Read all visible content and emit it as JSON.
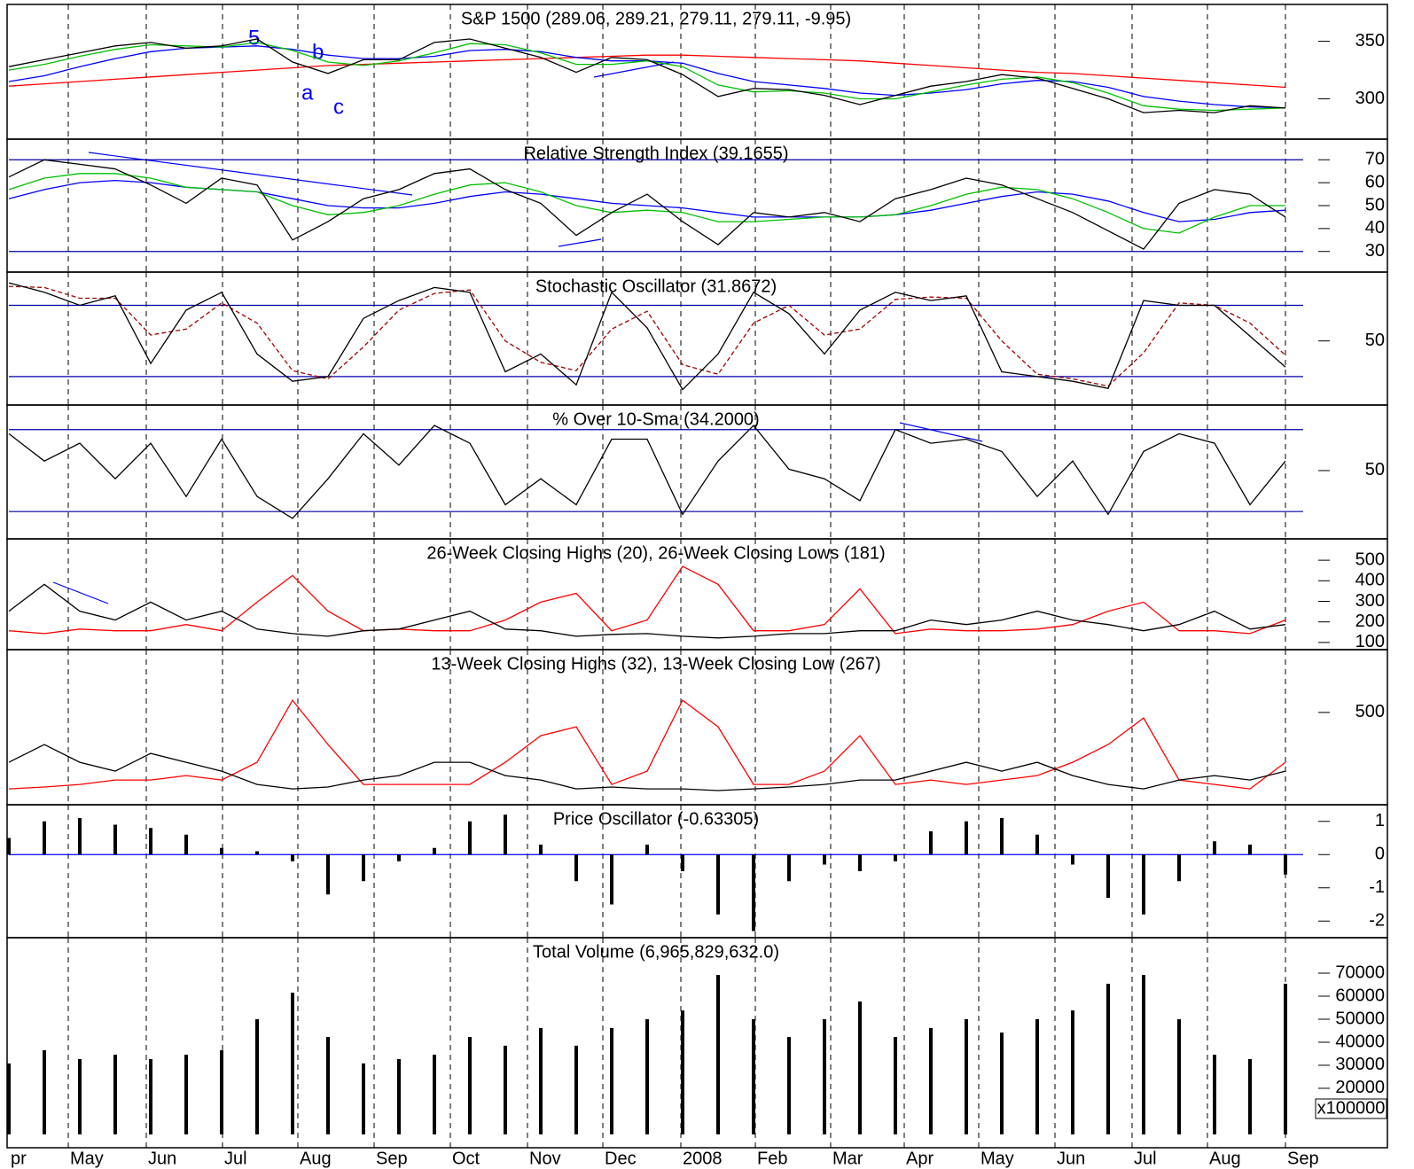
{
  "chart_data": [
    {
      "type": "line",
      "title": "S&P 1500 (289.06, 289.21, 279.11, 279.11, -9.95)",
      "ylim": [
        265,
        382
      ],
      "yticks": [
        300,
        350
      ],
      "annotations": [
        "5",
        "b",
        "a",
        "c"
      ],
      "series": [
        {
          "color": "#ff0000",
          "values": [
            311,
            313,
            315,
            317,
            319,
            321,
            323,
            325,
            327,
            329,
            330,
            331,
            332,
            333,
            334,
            335,
            336,
            337,
            338,
            338,
            337,
            336,
            335,
            334,
            333,
            331,
            329,
            327,
            325,
            323,
            322,
            320,
            318,
            316,
            314,
            312,
            310
          ]
        },
        {
          "color": "#0000ff",
          "values": [
            315,
            320,
            328,
            335,
            341,
            344,
            345,
            346,
            343,
            338,
            335,
            335,
            337,
            342,
            343,
            341,
            336,
            333,
            333,
            331,
            322,
            315,
            312,
            309,
            305,
            303,
            305,
            308,
            313,
            316,
            315,
            310,
            302,
            298,
            295,
            293,
            292
          ]
        },
        {
          "color": "#00c000",
          "values": [
            325,
            330,
            337,
            343,
            347,
            346,
            345,
            349,
            342,
            332,
            329,
            333,
            340,
            348,
            347,
            340,
            330,
            330,
            333,
            328,
            312,
            306,
            307,
            305,
            300,
            300,
            306,
            312,
            317,
            319,
            314,
            305,
            294,
            291,
            290,
            291,
            292
          ]
        },
        {
          "color": "#000000",
          "values": [
            328,
            334,
            340,
            346,
            349,
            344,
            346,
            352,
            332,
            322,
            334,
            334,
            349,
            352,
            344,
            336,
            323,
            336,
            334,
            321,
            302,
            309,
            308,
            303,
            295,
            303,
            311,
            315,
            321,
            318,
            309,
            300,
            288,
            290,
            288,
            294,
            292
          ]
        }
      ]
    },
    {
      "type": "line",
      "title": "Relative Strength Index (39.1655)",
      "ylim": [
        21,
        79
      ],
      "yticks": [
        30,
        40,
        50,
        60,
        70
      ],
      "hlines": [
        30,
        70
      ],
      "hline_color": "#0000aa",
      "series": [
        {
          "color": "#0000ff",
          "values": [
            53,
            57,
            60,
            61,
            60,
            58,
            57,
            56,
            53,
            50,
            49,
            49,
            51,
            54,
            56,
            55,
            53,
            51,
            50,
            49,
            47,
            45,
            45,
            45,
            45,
            46,
            48,
            51,
            54,
            56,
            55,
            52,
            47,
            43,
            44,
            47,
            48
          ]
        },
        {
          "color": "#00c000",
          "values": [
            57,
            62,
            64,
            64,
            62,
            58,
            57,
            56,
            50,
            46,
            47,
            50,
            55,
            59,
            60,
            56,
            50,
            47,
            48,
            47,
            43,
            43,
            44,
            45,
            45,
            46,
            50,
            55,
            58,
            57,
            53,
            47,
            40,
            38,
            45,
            50,
            50
          ]
        },
        {
          "color": "#000000",
          "values": [
            62.5,
            70,
            68,
            66,
            59,
            51,
            62,
            59,
            35,
            43,
            53,
            57,
            64,
            66,
            57,
            51,
            37,
            47,
            55,
            43,
            33,
            47,
            45,
            47,
            43,
            53,
            57,
            62,
            59,
            53,
            47,
            39,
            31,
            51,
            57,
            55,
            45
          ]
        }
      ]
    },
    {
      "type": "line",
      "title": "Stochastic Oscillator (31.8672)",
      "ylim": [
        -4,
        108
      ],
      "yticks": [
        50
      ],
      "hlines": [
        20,
        80
      ],
      "hline_color": "#0000aa",
      "series": [
        {
          "color": "#a00000",
          "dash": true,
          "values": [
            96,
            95,
            86,
            86,
            55,
            60,
            82,
            65,
            25,
            18,
            45,
            76,
            90,
            93,
            50,
            32,
            25,
            60,
            75,
            30,
            22,
            65,
            80,
            55,
            60,
            85,
            87,
            86,
            50,
            22,
            18,
            12,
            40,
            82,
            80,
            65,
            38
          ]
        },
        {
          "color": "#000000",
          "values": [
            99,
            91,
            80,
            88,
            31,
            76,
            91,
            39,
            16,
            20,
            69,
            84,
            95,
            91,
            24,
            39,
            13,
            91,
            61,
            9,
            39,
            91,
            73,
            39,
            76,
            91,
            84,
            88,
            24,
            20,
            16,
            10,
            84,
            80,
            80,
            54,
            28
          ]
        }
      ]
    },
    {
      "type": "line",
      "title": "% Over 10-Sma (34.2000)",
      "ylim": [
        0,
        98
      ],
      "yticks": [
        50
      ],
      "hlines": [
        20,
        80
      ],
      "hline_color": "#0000aa",
      "series": [
        {
          "color": "#000000",
          "values": [
            77,
            57,
            70,
            44,
            70,
            31,
            73,
            31,
            15,
            44,
            77,
            54,
            83,
            70,
            25,
            44,
            25,
            73,
            73,
            18,
            57,
            83,
            51,
            44,
            28,
            80,
            70,
            73,
            64,
            31,
            57,
            18,
            64,
            77,
            70,
            25,
            57
          ]
        }
      ]
    },
    {
      "type": "line",
      "title": "26-Week Closing Highs (20), 26-Week Closing Lows (181)",
      "ylim": [
        65,
        604
      ],
      "yticks": [
        100,
        200,
        300,
        400,
        500
      ],
      "series": [
        {
          "color": "#ff0000",
          "values": [
            157,
            143,
            165,
            157,
            157,
            187,
            157,
            296,
            426,
            252,
            157,
            165,
            157,
            157,
            209,
            296,
            339,
            157,
            209,
            470,
            383,
            157,
            157,
            187,
            361,
            143,
            165,
            157,
            157,
            165,
            187,
            252,
            296,
            157,
            157,
            143,
            209
          ]
        },
        {
          "color": "#000000",
          "values": [
            252,
            383,
            252,
            209,
            296,
            209,
            252,
            165,
            143,
            130,
            157,
            165,
            209,
            252,
            165,
            157,
            130,
            139,
            143,
            130,
            122,
            130,
            143,
            143,
            157,
            157,
            209,
            187,
            209,
            252,
            209,
            187,
            157,
            187,
            252,
            165,
            187
          ]
        }
      ]
    },
    {
      "type": "line",
      "title": "13-Week Closing Highs (32), 13-Week Closing Low (267)",
      "ylim": [
        0,
        840
      ],
      "yticks": [
        500
      ],
      "series": [
        {
          "color": "#ff0000",
          "values": [
            86,
            96,
            110,
            134,
            134,
            158,
            134,
            230,
            566,
            326,
            110,
            110,
            110,
            110,
            230,
            374,
            422,
            110,
            182,
            566,
            422,
            110,
            110,
            182,
            374,
            110,
            134,
            110,
            134,
            158,
            230,
            326,
            470,
            134,
            110,
            86,
            230
          ]
        },
        {
          "color": "#000000",
          "values": [
            230,
            326,
            230,
            182,
            278,
            230,
            182,
            110,
            86,
            96,
            134,
            158,
            230,
            230,
            158,
            134,
            86,
            96,
            86,
            86,
            77,
            86,
            96,
            110,
            134,
            134,
            182,
            230,
            182,
            230,
            158,
            110,
            86,
            134,
            158,
            134,
            182
          ]
        }
      ]
    },
    {
      "type": "bar",
      "title": "Price Oscillator (-0.63305)",
      "ylim": [
        -2.5,
        1.5
      ],
      "yticks": [
        -2,
        -1,
        0,
        1
      ],
      "hlines": [
        0
      ],
      "hline_color": "#0000ff",
      "color": "#000000",
      "values": [
        0.5,
        1.0,
        1.1,
        0.9,
        0.8,
        0.6,
        0.2,
        0.1,
        -0.2,
        -1.2,
        -0.8,
        -0.2,
        0.2,
        1.0,
        1.2,
        0.3,
        -0.8,
        -1.5,
        0.3,
        -0.5,
        -1.8,
        -2.3,
        -0.8,
        -0.3,
        -0.5,
        -0.2,
        0.7,
        1.0,
        1.1,
        0.6,
        -0.3,
        -1.3,
        -1.8,
        -0.8,
        0.4,
        0.3,
        -0.6
      ]
    },
    {
      "type": "bar",
      "title": "Total Volume (6,965,829,632.0)",
      "ylim": [
        -5800,
        85400
      ],
      "yticks": [
        20000,
        30000,
        40000,
        50000,
        60000,
        70000
      ],
      "unit_label": "x100000",
      "color": "#000000",
      "values": [
        30800,
        36500,
        32700,
        34600,
        32700,
        34600,
        36500,
        50000,
        61500,
        42300,
        30800,
        32700,
        34600,
        42300,
        38500,
        46200,
        38500,
        46200,
        50000,
        53800,
        69200,
        50000,
        42300,
        50000,
        57700,
        42300,
        46200,
        50000,
        44200,
        50000,
        53800,
        65400,
        69200,
        50000,
        34600,
        32700,
        65400
      ],
      "x": [
        0,
        2,
        4,
        6,
        8,
        10,
        12,
        14,
        16,
        18,
        20,
        22,
        24,
        26,
        28,
        30,
        32,
        34,
        36,
        38,
        40,
        42,
        44,
        46,
        48,
        50,
        52,
        54,
        56,
        58,
        60,
        62,
        64,
        66,
        68,
        70,
        72
      ],
      "xlim": [
        0,
        73
      ],
      "xticks": [
        {
          "value": 0,
          "label": "pr"
        },
        {
          "value": 3.35,
          "label": "May"
        },
        {
          "value": 7.75,
          "label": "Jun"
        },
        {
          "value": 12.05,
          "label": "Jul"
        },
        {
          "value": 16.3,
          "label": "Aug"
        },
        {
          "value": 20.6,
          "label": "Sep"
        },
        {
          "value": 24.9,
          "label": "Oct"
        },
        {
          "value": 29.25,
          "label": "Nov"
        },
        {
          "value": 33.5,
          "label": "Dec"
        },
        {
          "value": 37.9,
          "label": "2008"
        },
        {
          "value": 42.1,
          "label": "Feb"
        },
        {
          "value": 46.35,
          "label": "Mar"
        },
        {
          "value": 50.5,
          "label": "Apr"
        },
        {
          "value": 54.7,
          "label": "May"
        },
        {
          "value": 59,
          "label": "Jun"
        },
        {
          "value": 63.35,
          "label": "Jul"
        },
        {
          "value": 67.6,
          "label": "Aug"
        },
        {
          "value": 72,
          "label": "Sep"
        }
      ]
    }
  ]
}
